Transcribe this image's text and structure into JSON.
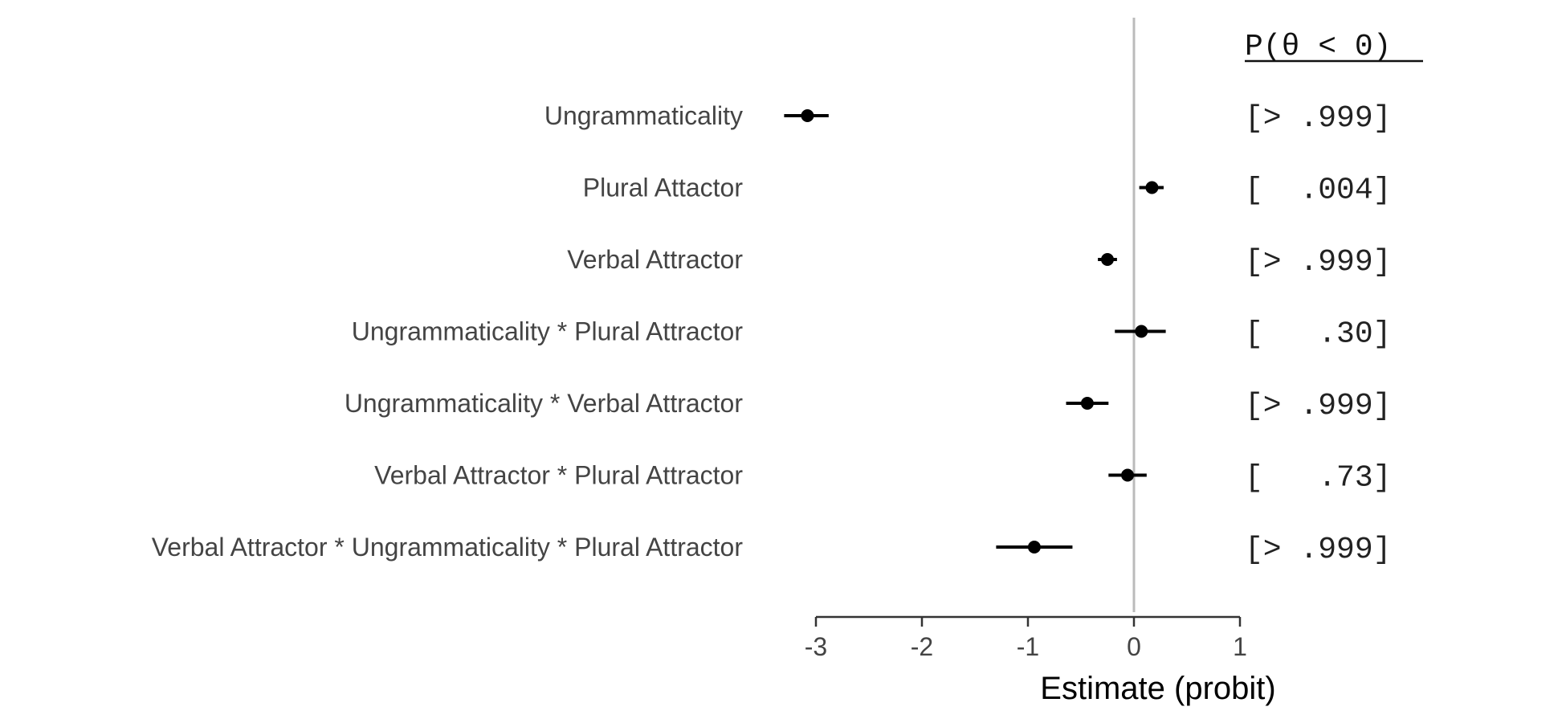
{
  "chart_data": {
    "type": "scatter",
    "subtype": "coefficient-interval-plot",
    "xlabel": "Estimate (probit)",
    "xlim": [
      -3,
      1
    ],
    "xticks": [
      -3,
      -2,
      -1,
      0,
      1
    ],
    "reference_line_x": 0,
    "prob_header": "P(θ < 0)",
    "terms": [
      {
        "label": "Ungrammaticality",
        "estimate": -3.08,
        "lower": -3.3,
        "upper": -2.88,
        "prob": "[> .999]"
      },
      {
        "label": "Plural Attactor",
        "estimate": 0.17,
        "lower": 0.05,
        "upper": 0.28,
        "prob": "[  .004]"
      },
      {
        "label": "Verbal Attractor",
        "estimate": -0.25,
        "lower": -0.34,
        "upper": -0.16,
        "prob": "[> .999]"
      },
      {
        "label": "Ungrammaticality * Plural Attractor",
        "estimate": 0.07,
        "lower": -0.18,
        "upper": 0.3,
        "prob": "[   .30]"
      },
      {
        "label": "Ungrammaticality * Verbal Attractor",
        "estimate": -0.44,
        "lower": -0.64,
        "upper": -0.24,
        "prob": "[> .999]"
      },
      {
        "label": "Verbal Attractor * Plural Attractor",
        "estimate": -0.06,
        "lower": -0.24,
        "upper": 0.12,
        "prob": "[   .73]"
      },
      {
        "label": "Verbal Attractor * Ungrammaticality * Plural Attractor",
        "estimate": -0.94,
        "lower": -1.3,
        "upper": -0.58,
        "prob": "[> .999]"
      }
    ],
    "colors": {
      "point": "#000000",
      "reference_line": "#bbbbbb",
      "label": "#444444"
    }
  }
}
